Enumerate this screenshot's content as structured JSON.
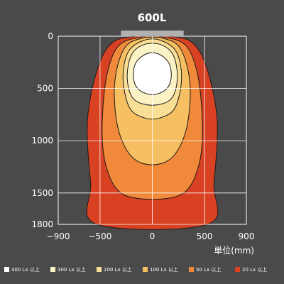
{
  "chart_data": {
    "type": "heatmap",
    "title": "600L",
    "xlabel": "単位(mm)",
    "ylabel": "",
    "xlim": [
      -900,
      900
    ],
    "ylim": [
      0,
      1800
    ],
    "x_ticks": [
      "−900",
      "−500",
      "0",
      "500",
      "900"
    ],
    "x_tick_values": [
      -900,
      -500,
      0,
      500,
      900
    ],
    "y_ticks": [
      "0",
      "500",
      "1000",
      "1500",
      "1800"
    ],
    "y_tick_values": [
      0,
      500,
      1000,
      1500,
      1800
    ],
    "grid": true,
    "fixture": {
      "x_from": -300,
      "x_to": 300,
      "color": "#b0b0b0"
    },
    "legend_position": "bottom",
    "series": [
      {
        "name": "20 Lx 以上",
        "color": "#d84223",
        "outline": [
          [
            -150,
            0
          ],
          [
            150,
            0
          ],
          [
            380,
            60
          ],
          [
            520,
            300
          ],
          [
            620,
            800
          ],
          [
            590,
            1400
          ],
          [
            530,
            1800
          ],
          [
            -530,
            1800
          ],
          [
            -590,
            1400
          ],
          [
            -620,
            800
          ],
          [
            -520,
            300
          ],
          [
            -380,
            60
          ]
        ]
      },
      {
        "name": "50 Lx 以上",
        "color": "#f08a3a",
        "outline": [
          [
            -120,
            10
          ],
          [
            120,
            10
          ],
          [
            330,
            100
          ],
          [
            440,
            400
          ],
          [
            480,
            900
          ],
          [
            440,
            1250
          ],
          [
            300,
            1500
          ],
          [
            0,
            1560
          ],
          [
            -300,
            1500
          ],
          [
            -440,
            1250
          ],
          [
            -480,
            900
          ],
          [
            -440,
            400
          ],
          [
            -330,
            100
          ]
        ]
      },
      {
        "name": "100 Lx 以上",
        "color": "#f5bf62",
        "outline": [
          [
            -100,
            20
          ],
          [
            100,
            20
          ],
          [
            270,
            120
          ],
          [
            360,
            450
          ],
          [
            330,
            870
          ],
          [
            200,
            1150
          ],
          [
            0,
            1230
          ],
          [
            -200,
            1150
          ],
          [
            -330,
            870
          ],
          [
            -360,
            450
          ],
          [
            -270,
            120
          ]
        ]
      },
      {
        "name": "200 Lx 以上",
        "color": "#f9df96",
        "outline": [
          [
            -80,
            40
          ],
          [
            80,
            40
          ],
          [
            230,
            150
          ],
          [
            280,
            400
          ],
          [
            220,
            680
          ],
          [
            80,
            780
          ],
          [
            -80,
            780
          ],
          [
            -220,
            680
          ],
          [
            -280,
            400
          ],
          [
            -230,
            150
          ]
        ]
      },
      {
        "name": "300 Lx 以上",
        "color": "#fbf2c6",
        "outline": [
          [
            -80,
            80
          ],
          [
            80,
            80
          ],
          [
            200,
            180
          ],
          [
            240,
            400
          ],
          [
            180,
            600
          ],
          [
            0,
            660
          ],
          [
            -180,
            600
          ],
          [
            -240,
            400
          ],
          [
            -200,
            180
          ]
        ]
      },
      {
        "name": "400 Lx 以上",
        "color": "#ffffff",
        "outline": [
          [
            -60,
            170
          ],
          [
            60,
            170
          ],
          [
            160,
            260
          ],
          [
            180,
            400
          ],
          [
            130,
            510
          ],
          [
            0,
            560
          ],
          [
            -130,
            510
          ],
          [
            -180,
            400
          ],
          [
            -160,
            260
          ]
        ]
      }
    ]
  }
}
